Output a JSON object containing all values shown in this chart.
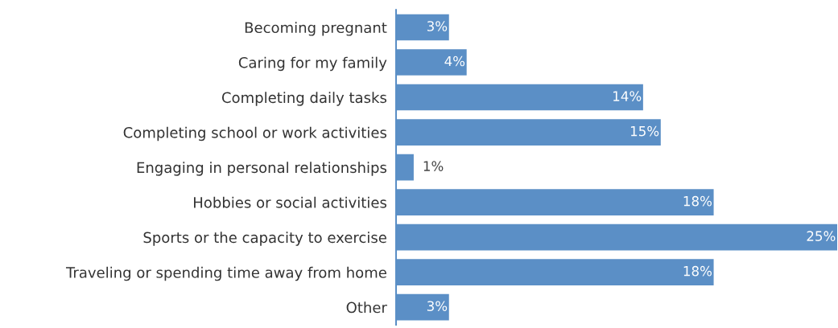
{
  "chart_data": {
    "type": "bar",
    "orientation": "horizontal",
    "categories": [
      "Becoming pregnant",
      "Caring for my family",
      "Completing daily tasks",
      "Completing school or work activities",
      "Engaging in personal relationships",
      "Hobbies or social activities",
      "Sports or the capacity to exercise",
      "Traveling or spending time away from home",
      "Other"
    ],
    "values": [
      3,
      4,
      14,
      15,
      1,
      18,
      25,
      18,
      3
    ],
    "value_labels": [
      "3%",
      "4%",
      "14%",
      "15%",
      "1%",
      "18%",
      "25%",
      "18%",
      "3%"
    ],
    "color": "#5b8fc6",
    "grid": false,
    "legend": false
  }
}
